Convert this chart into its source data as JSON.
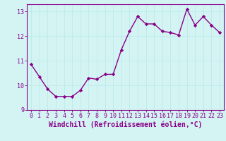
{
  "x": [
    0,
    1,
    2,
    3,
    4,
    5,
    6,
    7,
    8,
    9,
    10,
    11,
    12,
    13,
    14,
    15,
    16,
    17,
    18,
    19,
    20,
    21,
    22,
    23
  ],
  "y": [
    10.85,
    10.35,
    9.85,
    9.55,
    9.55,
    9.55,
    9.8,
    10.3,
    10.25,
    10.45,
    10.45,
    11.45,
    12.2,
    12.8,
    12.5,
    12.5,
    12.2,
    12.15,
    12.05,
    13.1,
    12.45,
    12.8,
    12.45,
    12.15
  ],
  "line_color": "#880088",
  "marker": "D",
  "marker_size": 2.2,
  "linewidth": 1.0,
  "bg_color": "#d4f4f4",
  "grid_color": "#b8e8e8",
  "xlabel": "Windchill (Refroidissement éolien,°C)",
  "xlabel_color": "#880088",
  "xlim": [
    -0.5,
    23.5
  ],
  "ylim": [
    9.0,
    13.3
  ],
  "yticks": [
    9,
    10,
    11,
    12,
    13
  ],
  "xticks": [
    0,
    1,
    2,
    3,
    4,
    5,
    6,
    7,
    8,
    9,
    10,
    11,
    12,
    13,
    14,
    15,
    16,
    17,
    18,
    19,
    20,
    21,
    22,
    23
  ],
  "tick_color": "#880088",
  "tick_fontsize": 6,
  "xlabel_fontsize": 7,
  "spine_color": "#880088",
  "grid_linewidth": 0.5
}
